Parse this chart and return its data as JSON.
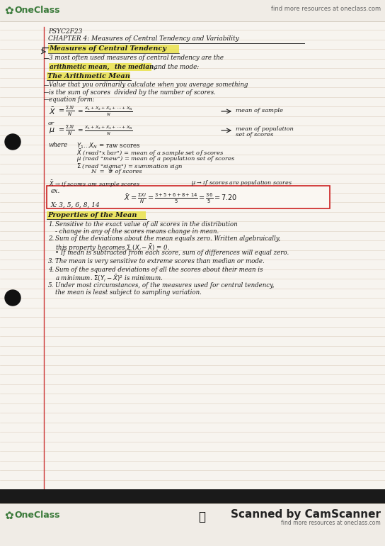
{
  "bg_color": "#f0ece4",
  "page_color": "#f7f4ef",
  "line_color": "#ddd0c0",
  "red_margin_color": "#cc3333",
  "oneclass_green": "#3a7a3a",
  "header_top": "find more resources at oneclass.com",
  "highlight_yellow": "#e8e040",
  "footer_scanned": "Scanned by CamScanner",
  "footer_sub": "find more resources at oneclass.com"
}
